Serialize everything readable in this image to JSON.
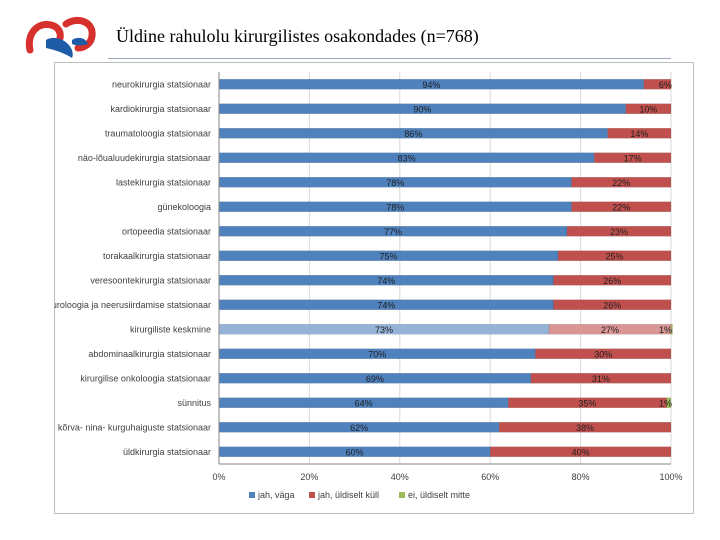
{
  "slide": {
    "title": "Üldine rahulolu kirurgilistes osakondades (n=768)"
  },
  "colors": {
    "series_1": "#4f81bd",
    "series_1_highlight": "#95b3d7",
    "series_2": "#c0504d",
    "series_2_highlight": "#d99694",
    "series_3": "#9bbb59",
    "grid": "#d9d9d9",
    "axis": "#868686",
    "logo_red": "#d7312e",
    "logo_blue": "#1f5ca8"
  },
  "chart_data": {
    "type": "bar",
    "orientation": "horizontal",
    "stacked": "percent",
    "title": "",
    "xlabel": "",
    "ylabel": "",
    "xlim": [
      0,
      100
    ],
    "legend_position": "bottom",
    "x_ticks": [
      "0%",
      "20%",
      "40%",
      "60%",
      "80%",
      "100%"
    ],
    "x_tick_values": [
      0,
      20,
      40,
      60,
      80,
      100
    ],
    "highlight_category": "kirurgiliste keskmine",
    "categories": [
      "neurokirurgia statsionaar",
      "kardiokirurgia statsionaar",
      "traumatoloogia statsionaar",
      "näo-lõualuudekirurgia statsionaar",
      "lastekirurgia statsionaar",
      "günekoloogia",
      "ortopeedia statsionaar",
      "torakaalkirurgia statsionaar",
      "veresoontekirurgia statsionaar",
      "uroloogia ja neerusiirdamise statsionaar",
      "kirurgiliste keskmine",
      "abdominaalkirurgia statsionaar",
      "kirurgilise onkoloogia statsionaar",
      "sünnitus",
      "kõrva- nina- kurguhaiguste statsionaar",
      "üldkirurgia statsionaar"
    ],
    "series": [
      {
        "name": "jah, väga",
        "values": [
          94,
          90,
          86,
          83,
          78,
          78,
          77,
          75,
          74,
          74,
          73,
          70,
          69,
          64,
          62,
          60
        ],
        "labels": [
          "94%",
          "90%",
          "86%",
          "83%",
          "78%",
          "78%",
          "77%",
          "75%",
          "74%",
          "74%",
          "73%",
          "70%",
          "69%",
          "64%",
          "62%",
          "60%"
        ]
      },
      {
        "name": "jah, üldiselt küll",
        "values": [
          6,
          10,
          14,
          17,
          22,
          22,
          23,
          25,
          26,
          26,
          27,
          30,
          31,
          35,
          38,
          40
        ],
        "labels": [
          "6%",
          "10%",
          "14%",
          "17%",
          "22%",
          "22%",
          "23%",
          "25%",
          "26%",
          "26%",
          "27%",
          "30%",
          "31%",
          "35%",
          "38%",
          "40%"
        ]
      },
      {
        "name": "ei, üldiselt mitte",
        "values": [
          0,
          0,
          0,
          0,
          0,
          0,
          0,
          0,
          0,
          0,
          1,
          0,
          0,
          1,
          0,
          0
        ],
        "labels": [
          "",
          "",
          "",
          "",
          "",
          "",
          "",
          "",
          "",
          "",
          "1%",
          "",
          "",
          "1%",
          "",
          ""
        ]
      }
    ]
  }
}
